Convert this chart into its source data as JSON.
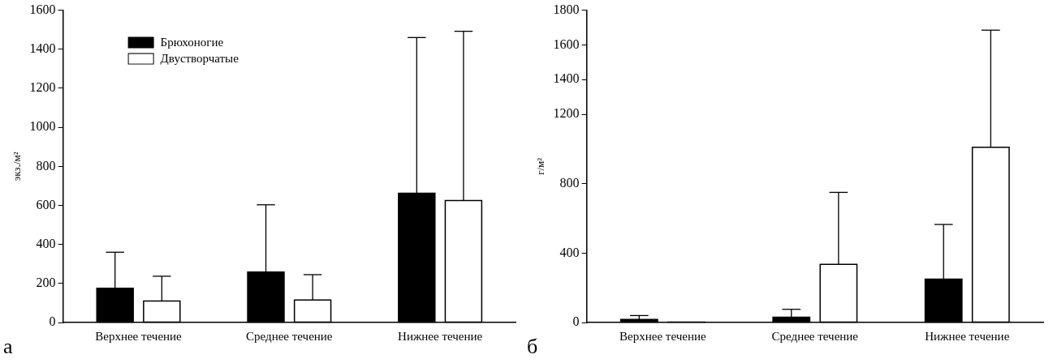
{
  "chart_data": [
    {
      "type": "bar",
      "ylabel": "экз./м²",
      "categories": [
        "Верхнее течение",
        "Среднее течение",
        "Нижнее течение"
      ],
      "series": [
        {
          "name": "Брюхоногие",
          "color": "#000000",
          "values": [
            175,
            258,
            662
          ],
          "errors": [
            [
              175,
              360
            ],
            [
              258,
              603
            ],
            [
              662,
              1460
            ]
          ]
        },
        {
          "name": "Двустворчатые",
          "color": "#ffffff",
          "values": [
            110,
            115,
            625
          ],
          "errors": [
            [
              110,
              237
            ],
            [
              115,
              245
            ],
            [
              625,
              1492
            ]
          ]
        }
      ],
      "ylim": [
        0,
        1600
      ],
      "yticks": [
        0,
        200,
        400,
        600,
        800,
        1000,
        1200,
        1400,
        1600
      ],
      "grid": false,
      "legend": "top left",
      "annotations": [
        "а"
      ]
    },
    {
      "type": "bar",
      "ylabel": "г/м²",
      "categories": [
        "Верхнее течение",
        "Среднее течение",
        "Нижнее течение"
      ],
      "series": [
        {
          "color": "#000000",
          "values": [
            18,
            30,
            250
          ],
          "errors": [
            [
              18,
              40
            ],
            [
              30,
              76
            ],
            [
              250,
              565
            ]
          ]
        },
        {
          "color": "#ffffff",
          "values": [
            2,
            335,
            1010
          ],
          "errors": [
            null,
            [
              335,
              750
            ],
            [
              1010,
              1685
            ]
          ]
        }
      ],
      "ylim": [
        0,
        1800
      ],
      "yticks": [
        0,
        400,
        800,
        1200,
        1400,
        1600,
        1800
      ],
      "grid": false,
      "legend": false,
      "annotations": [
        "б"
      ]
    }
  ]
}
